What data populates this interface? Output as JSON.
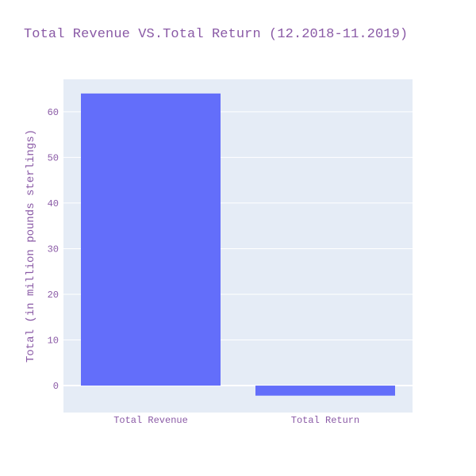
{
  "chart_data": {
    "type": "bar",
    "title": "Total Revenue VS.Total Return (12.2018-11.2019)",
    "categories": [
      "Total Revenue",
      "Total Return"
    ],
    "values": [
      64,
      -2.2
    ],
    "xlabel": "",
    "ylabel": "Total (in million pounds sterlings)",
    "ylim": [
      -5.9,
      67.1
    ],
    "yticks": [
      0,
      10,
      20,
      30,
      40,
      50,
      60
    ],
    "grid": true,
    "legend": "none",
    "colors": {
      "bar": "#636efa",
      "plot_background": "#e5ecf6",
      "gridline": "#ffffff",
      "text": "#8a5aa6"
    }
  }
}
